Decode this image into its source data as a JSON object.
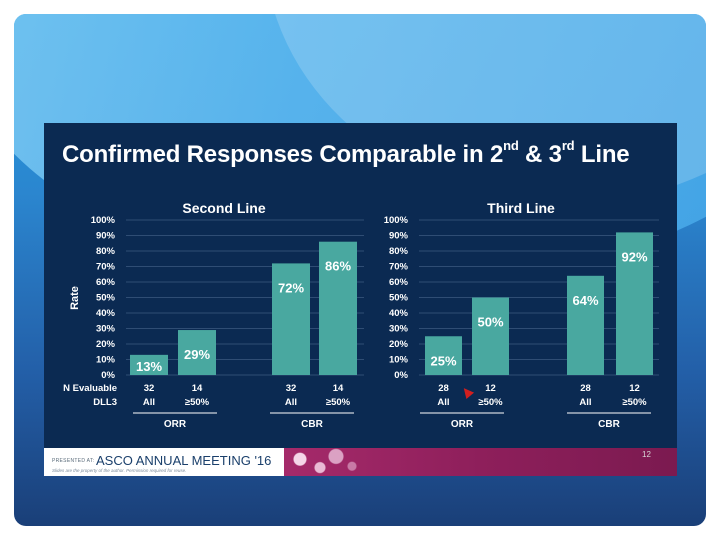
{
  "slide_title": {
    "main": "Confirmed Responses Comparable in 2",
    "sup1": "nd",
    "mid": " & 3",
    "sup2": "rd",
    "end": " Line"
  },
  "footer": {
    "presented_at": "PRESENTED AT:",
    "meeting": "ASCO ANNUAL MEETING '16",
    "rights": "Slides are the property of the author. Permission required for reuse.",
    "page_number": "12"
  },
  "colors": {
    "bar": "#49a8a0",
    "slide_bg": "#0b2a52",
    "text": "#ffffff"
  },
  "chart_data": [
    {
      "type": "bar",
      "title": "Second Line",
      "ylabel": "Rate",
      "ylim": [
        0,
        100
      ],
      "yticks": [
        "0%",
        "10%",
        "20%",
        "30%",
        "40%",
        "50%",
        "60%",
        "70%",
        "80%",
        "90%",
        "100%"
      ],
      "row_labels": [
        "N Evaluable",
        "DLL3"
      ],
      "bars": [
        {
          "value": 13,
          "label": "13%",
          "n": "32",
          "dll3": "All"
        },
        {
          "value": 29,
          "label": "29%",
          "n": "14",
          "dll3": "≥50%"
        },
        {
          "value": 72,
          "label": "72%",
          "n": "32",
          "dll3": "All"
        },
        {
          "value": 86,
          "label": "86%",
          "n": "14",
          "dll3": "≥50%"
        }
      ],
      "groups": [
        "ORR",
        "CBR"
      ]
    },
    {
      "type": "bar",
      "title": "Third Line",
      "ylim": [
        0,
        100
      ],
      "yticks": [
        "0%",
        "10%",
        "20%",
        "30%",
        "40%",
        "50%",
        "60%",
        "70%",
        "80%",
        "90%",
        "100%"
      ],
      "bars": [
        {
          "value": 25,
          "label": "25%",
          "n": "28",
          "dll3": "All"
        },
        {
          "value": 50,
          "label": "50%",
          "n": "12",
          "dll3": "≥50%"
        },
        {
          "value": 64,
          "label": "64%",
          "n": "28",
          "dll3": "All"
        },
        {
          "value": 92,
          "label": "92%",
          "n": "12",
          "dll3": "≥50%"
        }
      ],
      "groups": [
        "ORR",
        "CBR"
      ]
    }
  ]
}
